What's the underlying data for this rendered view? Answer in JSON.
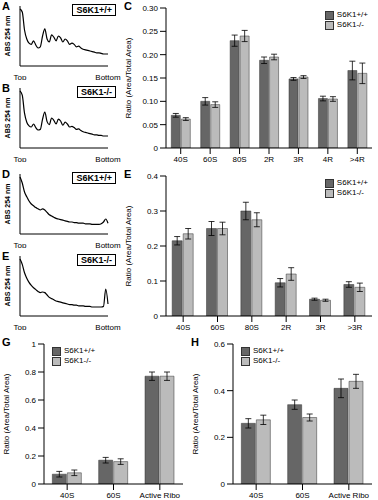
{
  "chart_data": [
    {
      "type": "line",
      "panel": "A",
      "title": "S6K1+/+",
      "y_label": "ABS 254 nm",
      "tick_labels": "x",
      "grid": false,
      "color": "#000000",
      "ylim": [
        0,
        1
      ],
      "categories": [
        "Top",
        null,
        null,
        null,
        null,
        null,
        null,
        null,
        null,
        null,
        null,
        null,
        null,
        null,
        null,
        null,
        null,
        null,
        null,
        null,
        null,
        null,
        null,
        null,
        null,
        null,
        null,
        null,
        null,
        null,
        null,
        null,
        null,
        null,
        null,
        null,
        null,
        null,
        null,
        "Bottom"
      ],
      "values": [
        0.95,
        0.9,
        0.6,
        0.45,
        0.38,
        0.36,
        0.42,
        0.35,
        0.3,
        0.32,
        0.5,
        0.62,
        0.45,
        0.4,
        0.52,
        0.48,
        0.42,
        0.5,
        0.47,
        0.4,
        0.45,
        0.42,
        0.36,
        0.38,
        0.36,
        0.32,
        0.33,
        0.3,
        0.28,
        0.27,
        0.26,
        0.25,
        0.24,
        0.23,
        0.22,
        0.22,
        0.21,
        0.2,
        0.2,
        0.2
      ]
    },
    {
      "type": "line",
      "panel": "B",
      "title": "S6K1-/-",
      "y_label": "ABS 254 nm",
      "tick_labels": "x",
      "grid": false,
      "color": "#000000",
      "ylim": [
        0,
        1
      ],
      "categories": [
        "Top",
        null,
        null,
        null,
        null,
        null,
        null,
        null,
        null,
        null,
        null,
        null,
        null,
        null,
        null,
        null,
        null,
        null,
        null,
        null,
        null,
        null,
        null,
        null,
        null,
        null,
        null,
        null,
        null,
        null,
        null,
        null,
        null,
        null,
        null,
        null,
        null,
        null,
        null,
        "Bottom"
      ],
      "values": [
        0.95,
        0.88,
        0.58,
        0.43,
        0.37,
        0.35,
        0.4,
        0.34,
        0.3,
        0.31,
        0.48,
        0.6,
        0.44,
        0.39,
        0.5,
        0.46,
        0.4,
        0.48,
        0.45,
        0.38,
        0.43,
        0.4,
        0.35,
        0.36,
        0.34,
        0.31,
        0.32,
        0.29,
        0.27,
        0.26,
        0.25,
        0.24,
        0.23,
        0.22,
        0.22,
        0.21,
        0.21,
        0.2,
        0.2,
        0.2
      ]
    },
    {
      "type": "bar",
      "panel": "C",
      "y_label": "Ratio (Area/Total Area)",
      "grid": false,
      "legend": "upper right",
      "categories": [
        "40S",
        "60S",
        "80S",
        "2R",
        "3R",
        "4R",
        ">4R"
      ],
      "ylim": [
        0,
        0.3
      ],
      "yticks": [
        0,
        0.05,
        {
          "value": 0.1,
          "label": "0.10"
        },
        0.15,
        {
          "value": 0.2,
          "label": "0.20"
        },
        0.25,
        {
          "value": 0.3,
          "label": "0.30"
        }
      ],
      "series": [
        {
          "name": "S6K1+/+",
          "color": "#666666",
          "values": [
            0.07,
            0.1,
            0.23,
            0.188,
            0.148,
            0.106,
            0.166
          ],
          "errors": [
            0.004,
            0.008,
            0.012,
            0.007,
            0.003,
            0.005,
            0.02
          ]
        },
        {
          "name": "S6K1-/-",
          "color": "#bbbbbb",
          "values": [
            0.062,
            0.093,
            0.24,
            0.195,
            0.152,
            0.105,
            0.16
          ],
          "errors": [
            0.003,
            0.006,
            0.012,
            0.006,
            0.003,
            0.005,
            0.022
          ]
        }
      ]
    },
    {
      "type": "line",
      "panel": "D",
      "title": "S6K1+/+",
      "y_label": "ABS 254 nm",
      "tick_labels": "x",
      "grid": false,
      "color": "#000000",
      "ylim": [
        0,
        1
      ],
      "categories": [
        "Top",
        null,
        null,
        null,
        null,
        null,
        null,
        null,
        null,
        null,
        null,
        null,
        null,
        null,
        null,
        null,
        null,
        null,
        null,
        null,
        null,
        null,
        null,
        null,
        null,
        null,
        null,
        null,
        null,
        null,
        null,
        null,
        null,
        null,
        null,
        null,
        null,
        null,
        null,
        "Bottom"
      ],
      "values": [
        0.95,
        0.85,
        0.7,
        0.62,
        0.55,
        0.5,
        0.47,
        0.44,
        0.42,
        0.4,
        0.42,
        0.4,
        0.36,
        0.32,
        0.3,
        0.28,
        0.26,
        0.25,
        0.24,
        0.23,
        0.22,
        0.21,
        0.2,
        0.2,
        0.19,
        0.19,
        0.18,
        0.18,
        0.18,
        0.17,
        0.17,
        0.17,
        0.16,
        0.16,
        0.16,
        0.16,
        0.17,
        0.2,
        0.25,
        0.18
      ]
    },
    {
      "type": "line",
      "panel": "E",
      "title": "S6K1-/-",
      "y_label": "ABS 254 nm",
      "tick_labels": "x",
      "grid": false,
      "color": "#000000",
      "ylim": [
        0,
        1
      ],
      "categories": [
        "Top",
        null,
        null,
        null,
        null,
        null,
        null,
        null,
        null,
        null,
        null,
        null,
        null,
        null,
        null,
        null,
        null,
        null,
        null,
        null,
        null,
        null,
        null,
        null,
        null,
        null,
        null,
        null,
        null,
        null,
        null,
        null,
        null,
        null,
        null,
        null,
        null,
        null,
        null,
        "Bottom"
      ],
      "values": [
        0.95,
        0.86,
        0.72,
        0.63,
        0.56,
        0.51,
        0.47,
        0.44,
        0.41,
        0.39,
        0.4,
        0.39,
        0.35,
        0.31,
        0.29,
        0.27,
        0.25,
        0.24,
        0.23,
        0.22,
        0.21,
        0.2,
        0.19,
        0.19,
        0.18,
        0.18,
        0.17,
        0.17,
        0.17,
        0.16,
        0.16,
        0.16,
        0.15,
        0.15,
        0.15,
        0.15,
        0.15,
        0.16,
        0.45,
        0.2
      ]
    },
    {
      "type": "bar",
      "panel": "E",
      "y_label": "Ratio (Area/Total Area)",
      "grid": false,
      "legend": "upper right",
      "categories": [
        "40S",
        "60S",
        "80S",
        "2R",
        "3R",
        ">3R"
      ],
      "ylim": [
        0,
        0.4
      ],
      "yticks": [
        0,
        0.1,
        0.2,
        0.3,
        0.4
      ],
      "series": [
        {
          "name": "S6K1+/+",
          "color": "#666666",
          "values": [
            0.215,
            0.25,
            0.3,
            0.095,
            0.048,
            0.09
          ],
          "errors": [
            0.012,
            0.02,
            0.025,
            0.012,
            0.003,
            0.008
          ]
        },
        {
          "name": "S6K1-/-",
          "color": "#bbbbbb",
          "values": [
            0.235,
            0.25,
            0.275,
            0.12,
            0.045,
            0.082
          ],
          "errors": [
            0.015,
            0.018,
            0.02,
            0.018,
            0.003,
            0.012
          ]
        }
      ]
    },
    {
      "type": "bar",
      "panel": "G",
      "y_label": "Ratio (Area/Total Area)",
      "grid": false,
      "legend": "upper left",
      "categories": [
        "40S",
        "60S",
        "Active Ribo"
      ],
      "ylim": [
        0,
        1
      ],
      "yticks": [
        0,
        0.2,
        0.4,
        0.6,
        0.8,
        1
      ],
      "series": [
        {
          "name": "S6K1+/+",
          "color": "#666666",
          "values": [
            0.07,
            0.17,
            0.77
          ],
          "errors": [
            0.02,
            0.02,
            0.03
          ]
        },
        {
          "name": "S6K1-/-",
          "color": "#bbbbbb",
          "values": [
            0.08,
            0.16,
            0.77
          ],
          "errors": [
            0.02,
            0.02,
            0.03
          ]
        }
      ]
    },
    {
      "type": "bar",
      "panel": "H",
      "y_label": "Ratio (Area/Total Area)",
      "grid": false,
      "legend": "upper left",
      "categories": [
        "40S",
        "60S",
        "Active Ribo"
      ],
      "ylim": [
        0,
        0.6
      ],
      "yticks": [
        0,
        0.2,
        0.4,
        0.6
      ],
      "series": [
        {
          "name": "S6K1+/+",
          "color": "#666666",
          "values": [
            0.26,
            0.34,
            0.41
          ],
          "errors": [
            0.02,
            0.02,
            0.04
          ]
        },
        {
          "name": "S6K1-/-",
          "color": "#bbbbbb",
          "values": [
            0.275,
            0.285,
            0.44
          ],
          "errors": [
            0.02,
            0.015,
            0.03
          ]
        }
      ]
    }
  ]
}
